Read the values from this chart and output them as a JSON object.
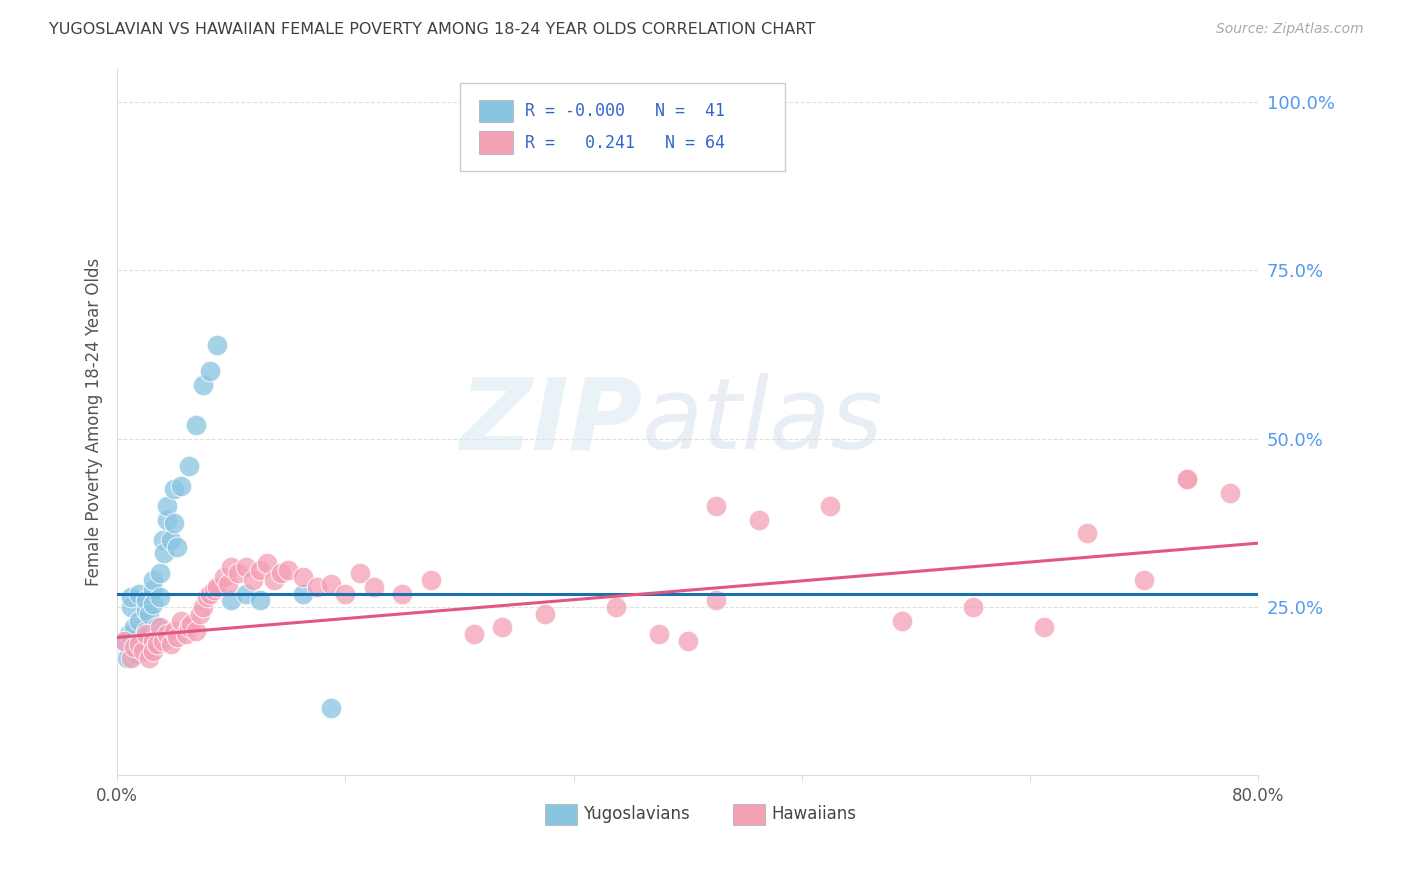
{
  "title": "YUGOSLAVIAN VS HAWAIIAN FEMALE POVERTY AMONG 18-24 YEAR OLDS CORRELATION CHART",
  "source": "Source: ZipAtlas.com",
  "ylabel": "Female Poverty Among 18-24 Year Olds",
  "xlim": [
    0.0,
    0.8
  ],
  "ylim": [
    0.0,
    1.05
  ],
  "xticks": [
    0.0,
    0.16,
    0.32,
    0.48,
    0.64,
    0.8
  ],
  "xticklabels": [
    "0.0%",
    "",
    "",
    "",
    "",
    "80.0%"
  ],
  "yticks_right": [
    0.25,
    0.5,
    0.75,
    1.0
  ],
  "yticklabels_right": [
    "25.0%",
    "50.0%",
    "75.0%",
    "100.0%"
  ],
  "watermark_zip": "ZIP",
  "watermark_atlas": "atlas",
  "blue_color": "#89c4e1",
  "pink_color": "#f4a0b5",
  "blue_line_color": "#1a6faf",
  "pink_line_color": "#e05880",
  "grid_color": "#cccccc",
  "dashed_color": "#bbbbbb",
  "title_color": "#404040",
  "right_tick_color": "#5599ee",
  "legend_text_color": "#3366cc",
  "yug_x": [
    0.005,
    0.007,
    0.008,
    0.01,
    0.01,
    0.012,
    0.013,
    0.015,
    0.015,
    0.017,
    0.018,
    0.02,
    0.02,
    0.02,
    0.022,
    0.022,
    0.025,
    0.025,
    0.025,
    0.028,
    0.03,
    0.03,
    0.032,
    0.033,
    0.035,
    0.035,
    0.038,
    0.04,
    0.04,
    0.042,
    0.045,
    0.05,
    0.055,
    0.06,
    0.065,
    0.07,
    0.08,
    0.09,
    0.1,
    0.13,
    0.15
  ],
  "yug_y": [
    0.2,
    0.175,
    0.21,
    0.25,
    0.265,
    0.22,
    0.18,
    0.23,
    0.27,
    0.2,
    0.195,
    0.245,
    0.26,
    0.215,
    0.24,
    0.21,
    0.275,
    0.29,
    0.255,
    0.22,
    0.3,
    0.265,
    0.35,
    0.33,
    0.38,
    0.4,
    0.35,
    0.375,
    0.425,
    0.34,
    0.43,
    0.46,
    0.52,
    0.58,
    0.6,
    0.64,
    0.26,
    0.27,
    0.26,
    0.27,
    0.1
  ],
  "haw_x": [
    0.005,
    0.01,
    0.012,
    0.015,
    0.018,
    0.02,
    0.022,
    0.025,
    0.025,
    0.028,
    0.03,
    0.032,
    0.035,
    0.038,
    0.04,
    0.042,
    0.045,
    0.048,
    0.05,
    0.052,
    0.055,
    0.058,
    0.06,
    0.063,
    0.065,
    0.068,
    0.07,
    0.075,
    0.078,
    0.08,
    0.085,
    0.09,
    0.095,
    0.1,
    0.105,
    0.11,
    0.115,
    0.12,
    0.13,
    0.14,
    0.15,
    0.16,
    0.17,
    0.18,
    0.2,
    0.22,
    0.25,
    0.27,
    0.3,
    0.35,
    0.38,
    0.4,
    0.42,
    0.45,
    0.5,
    0.55,
    0.6,
    0.65,
    0.68,
    0.72,
    0.75,
    0.78,
    0.42,
    0.75
  ],
  "haw_y": [
    0.2,
    0.175,
    0.19,
    0.195,
    0.185,
    0.21,
    0.175,
    0.2,
    0.185,
    0.195,
    0.22,
    0.2,
    0.21,
    0.195,
    0.215,
    0.205,
    0.23,
    0.21,
    0.22,
    0.225,
    0.215,
    0.24,
    0.25,
    0.265,
    0.27,
    0.275,
    0.28,
    0.295,
    0.285,
    0.31,
    0.3,
    0.31,
    0.29,
    0.305,
    0.315,
    0.29,
    0.3,
    0.305,
    0.295,
    0.28,
    0.285,
    0.27,
    0.3,
    0.28,
    0.27,
    0.29,
    0.21,
    0.22,
    0.24,
    0.25,
    0.21,
    0.2,
    0.26,
    0.38,
    0.4,
    0.23,
    0.25,
    0.22,
    0.36,
    0.29,
    0.44,
    0.42,
    0.4,
    0.44
  ],
  "blue_trendline_y0": 0.27,
  "blue_trendline_y1": 0.27,
  "pink_trendline_y0": 0.205,
  "pink_trendline_y1": 0.345,
  "dashed_line_y": 0.27
}
